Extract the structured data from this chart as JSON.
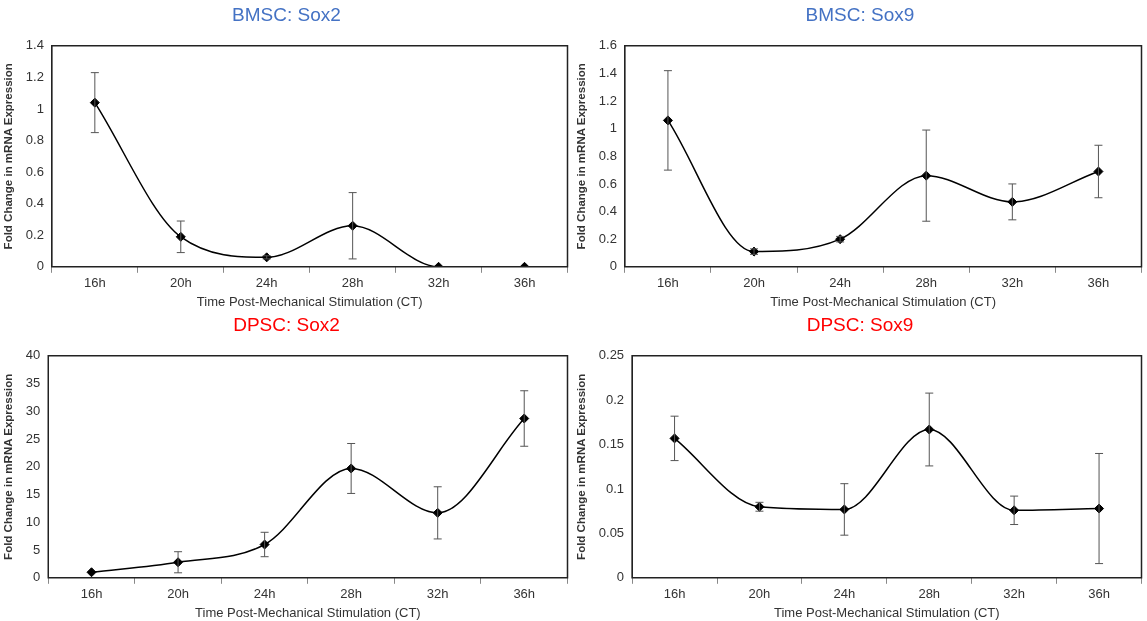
{
  "chart_data": [
    {
      "type": "line",
      "title": "BMSC: Sox2",
      "xlabel": "Time Post-Mechanical Stimulation (CT)",
      "ylabel": "Fold Change in mRNA Expression",
      "categories": [
        "16h",
        "20h",
        "24h",
        "28h",
        "32h",
        "36h"
      ],
      "values": [
        1.04,
        0.19,
        0.06,
        0.26,
        0,
        0
      ],
      "errors": [
        0.19,
        0.1,
        0.01,
        0.21,
        null,
        null
      ],
      "color": "#000000",
      "ylim": [
        0,
        1.4
      ],
      "yticks": [
        0,
        0.2,
        0.4,
        0.6,
        0.8,
        1,
        1.2,
        1.4
      ],
      "grid": false,
      "marker": "diamond",
      "line_style": "solid"
    },
    {
      "type": "line",
      "title": "BMSC: Sox9",
      "xlabel": "Time Post-Mechanical Stimulation (CT)",
      "ylabel": "Fold Change in mRNA Expression",
      "categories": [
        "16h",
        "20h",
        "24h",
        "28h",
        "32h",
        "36h"
      ],
      "values": [
        1.06,
        0.11,
        0.2,
        0.66,
        0.47,
        0.69
      ],
      "errors": [
        0.36,
        0.02,
        0.02,
        0.33,
        0.13,
        0.19
      ],
      "color": "#000000",
      "ylim": [
        0,
        1.6
      ],
      "yticks": [
        0,
        0.2,
        0.4,
        0.6,
        0.8,
        1,
        1.2,
        1.4,
        1.6
      ],
      "grid": false,
      "marker": "diamond",
      "line_style": "solid"
    },
    {
      "type": "line",
      "title": "DPSC: Sox2",
      "xlabel": "Time Post-Mechanical Stimulation (CT)",
      "ylabel": "Fold Change in mRNA Expression",
      "categories": [
        "16h",
        "20h",
        "24h",
        "28h",
        "32h",
        "36h"
      ],
      "values": [
        1,
        2.8,
        6,
        19.7,
        11.7,
        28.7
      ],
      "errors": [
        null,
        1.9,
        2.2,
        4.5,
        4.7,
        5
      ],
      "color": "#000000",
      "ylim": [
        0,
        40
      ],
      "yticks": [
        0,
        5,
        10,
        15,
        20,
        25,
        30,
        35,
        40
      ],
      "grid": false,
      "marker": "diamond",
      "line_style": "solid"
    },
    {
      "type": "line",
      "title": "DPSC: Sox9",
      "xlabel": "Time Post-Mechanical Stimulation (CT)",
      "ylabel": "Fold Change in mRNA Expression",
      "categories": [
        "16h",
        "20h",
        "24h",
        "28h",
        "32h",
        "36h"
      ],
      "values": [
        0.157,
        0.08,
        0.077,
        0.167,
        0.076,
        0.078
      ],
      "errors": [
        0.025,
        0.005,
        0.029,
        0.041,
        0.016,
        0.062
      ],
      "color": "#000000",
      "ylim": [
        0,
        0.25
      ],
      "yticks": [
        0,
        0.05,
        0.1,
        0.15,
        0.2,
        0.25
      ],
      "grid": false,
      "marker": "diamond",
      "line_style": "solid"
    }
  ]
}
